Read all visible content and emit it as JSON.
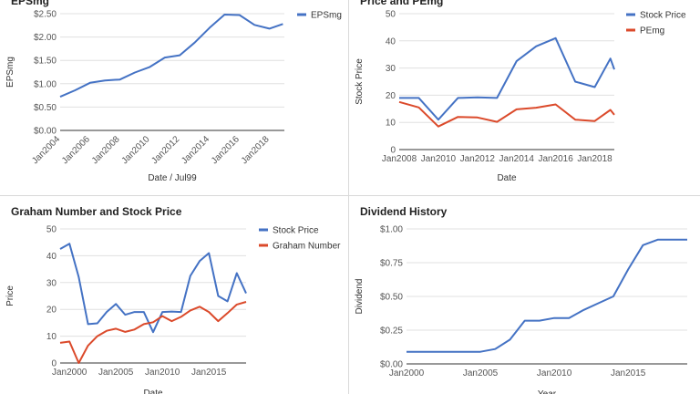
{
  "colors": {
    "blue": "#4472c4",
    "red": "#db4a2b",
    "grid": "#e0e0e0",
    "axis": "#333333",
    "tick": "#555555"
  },
  "chart_data": [
    {
      "id": "eps",
      "type": "line",
      "title": "EPSmg",
      "xlabel": "Date / Jul99",
      "ylabel": "EPSmg",
      "x_ticks": [
        2004,
        2006,
        2008,
        2010,
        2012,
        2014,
        2016,
        2018
      ],
      "x_tick_labels": [
        "Jan2004",
        "Jan2006",
        "Jan2008",
        "Jan2010",
        "Jan2012",
        "Jan2014",
        "Jan2016",
        "Jan2018"
      ],
      "xlim": [
        2004,
        2019
      ],
      "y_ticks": [
        0,
        0.5,
        1,
        1.5,
        2,
        2.5
      ],
      "y_tick_labels": [
        "$0.00",
        "$0.50",
        "$1.00",
        "$1.50",
        "$2.00",
        "$2.50"
      ],
      "ylim": [
        0,
        2.5
      ],
      "grid": true,
      "legend": "right",
      "series": [
        {
          "name": "EPSmg",
          "color": "blue",
          "x": [
            2004,
            2005,
            2006,
            2007,
            2008,
            2009,
            2010,
            2011,
            2012,
            2013,
            2014,
            2015,
            2016,
            2017,
            2018,
            2018.9
          ],
          "y": [
            0.72,
            0.86,
            1.02,
            1.07,
            1.09,
            1.24,
            1.36,
            1.56,
            1.61,
            1.88,
            2.2,
            2.48,
            2.47,
            2.26,
            2.18,
            2.28
          ]
        }
      ]
    },
    {
      "id": "price-pe",
      "type": "line",
      "title": "Price and PEmg",
      "xlabel": "Date",
      "ylabel": "Stock Price",
      "x_ticks": [
        2008,
        2010,
        2012,
        2014,
        2016,
        2018
      ],
      "x_tick_labels": [
        "Jan2008",
        "Jan2010",
        "Jan2012",
        "Jan2014",
        "Jan2016",
        "Jan2018"
      ],
      "xlim": [
        2008,
        2019
      ],
      "y_ticks": [
        0,
        10,
        20,
        30,
        40,
        50
      ],
      "y_tick_labels": [
        "0",
        "10",
        "20",
        "30",
        "40",
        "50"
      ],
      "ylim": [
        0,
        50
      ],
      "grid": true,
      "legend": "right",
      "series": [
        {
          "name": "Stock Price",
          "color": "blue",
          "x": [
            2008,
            2009,
            2010,
            2011,
            2012,
            2013,
            2014,
            2015,
            2016,
            2017,
            2018,
            2018.8,
            2019
          ],
          "y": [
            19,
            19,
            11,
            19,
            19.2,
            19,
            32.5,
            38,
            41,
            25,
            23,
            33.5,
            29.5
          ]
        },
        {
          "name": "PEmg",
          "color": "red",
          "x": [
            2008,
            2009,
            2010,
            2011,
            2012,
            2013,
            2014,
            2015,
            2016,
            2017,
            2018,
            2018.8,
            2019
          ],
          "y": [
            17.5,
            15.5,
            8.5,
            12,
            11.8,
            10.2,
            14.8,
            15.4,
            16.6,
            11,
            10.5,
            14.6,
            12.8
          ]
        }
      ]
    },
    {
      "id": "graham",
      "type": "line",
      "title": "Graham Number and Stock Price",
      "xlabel": "Date",
      "ylabel": "Price",
      "x_ticks": [
        2000,
        2005,
        2010,
        2015
      ],
      "x_tick_labels": [
        "Jan2000",
        "Jan2005",
        "Jan2010",
        "Jan2015"
      ],
      "xlim": [
        1999,
        2019
      ],
      "y_ticks": [
        0,
        10,
        20,
        30,
        40,
        50
      ],
      "y_tick_labels": [
        "0",
        "10",
        "20",
        "30",
        "40",
        "50"
      ],
      "ylim": [
        0,
        50
      ],
      "grid": true,
      "legend": "right",
      "series": [
        {
          "name": "Stock Price",
          "color": "blue",
          "x": [
            1999,
            2000,
            2001,
            2002,
            2003,
            2004,
            2005,
            2006,
            2007,
            2008,
            2009,
            2010,
            2011,
            2012,
            2013,
            2014,
            2015,
            2016,
            2017,
            2018,
            2019
          ],
          "y": [
            42.5,
            44.5,
            32,
            14.5,
            14.8,
            19,
            22,
            18,
            19,
            19,
            11.5,
            19,
            19.2,
            19,
            32.5,
            38,
            41,
            25,
            23,
            33.5,
            26
          ]
        },
        {
          "name": "Graham Number",
          "color": "red",
          "x": [
            1999,
            2000,
            2001,
            2002,
            2003,
            2004,
            2005,
            2006,
            2007,
            2008,
            2009,
            2010,
            2011,
            2012,
            2013,
            2014,
            2015,
            2016,
            2017,
            2018,
            2019
          ],
          "y": [
            7.5,
            8,
            0,
            6.5,
            10,
            12,
            12.8,
            11.6,
            12.5,
            14.5,
            15.2,
            17.5,
            15.6,
            17.2,
            19.6,
            21,
            19,
            15.6,
            18.6,
            21.8,
            22.8
          ]
        }
      ]
    },
    {
      "id": "dividend",
      "type": "line",
      "title": "Dividend History",
      "xlabel": "Year",
      "ylabel": "Dividend",
      "x_ticks": [
        2000,
        2005,
        2010,
        2015
      ],
      "x_tick_labels": [
        "Jan2000",
        "Jan2005",
        "Jan2010",
        "Jan2015"
      ],
      "xlim": [
        2000,
        2019
      ],
      "y_ticks": [
        0,
        0.25,
        0.5,
        0.75,
        1
      ],
      "y_tick_labels": [
        "$0.00",
        "$0.25",
        "$0.50",
        "$0.75",
        "$1.00"
      ],
      "ylim": [
        0,
        1
      ],
      "grid": true,
      "legend": "none",
      "series": [
        {
          "name": "",
          "color": "blue",
          "x": [
            2000,
            2001,
            2002,
            2003,
            2004,
            2005,
            2006,
            2007,
            2008,
            2009,
            2010,
            2011,
            2012,
            2013,
            2014,
            2015,
            2016,
            2017,
            2018,
            2019
          ],
          "y": [
            0.09,
            0.09,
            0.09,
            0.09,
            0.09,
            0.09,
            0.11,
            0.18,
            0.32,
            0.32,
            0.34,
            0.34,
            0.4,
            0.45,
            0.5,
            0.7,
            0.88,
            0.92,
            0.92,
            0.92
          ]
        }
      ]
    }
  ]
}
